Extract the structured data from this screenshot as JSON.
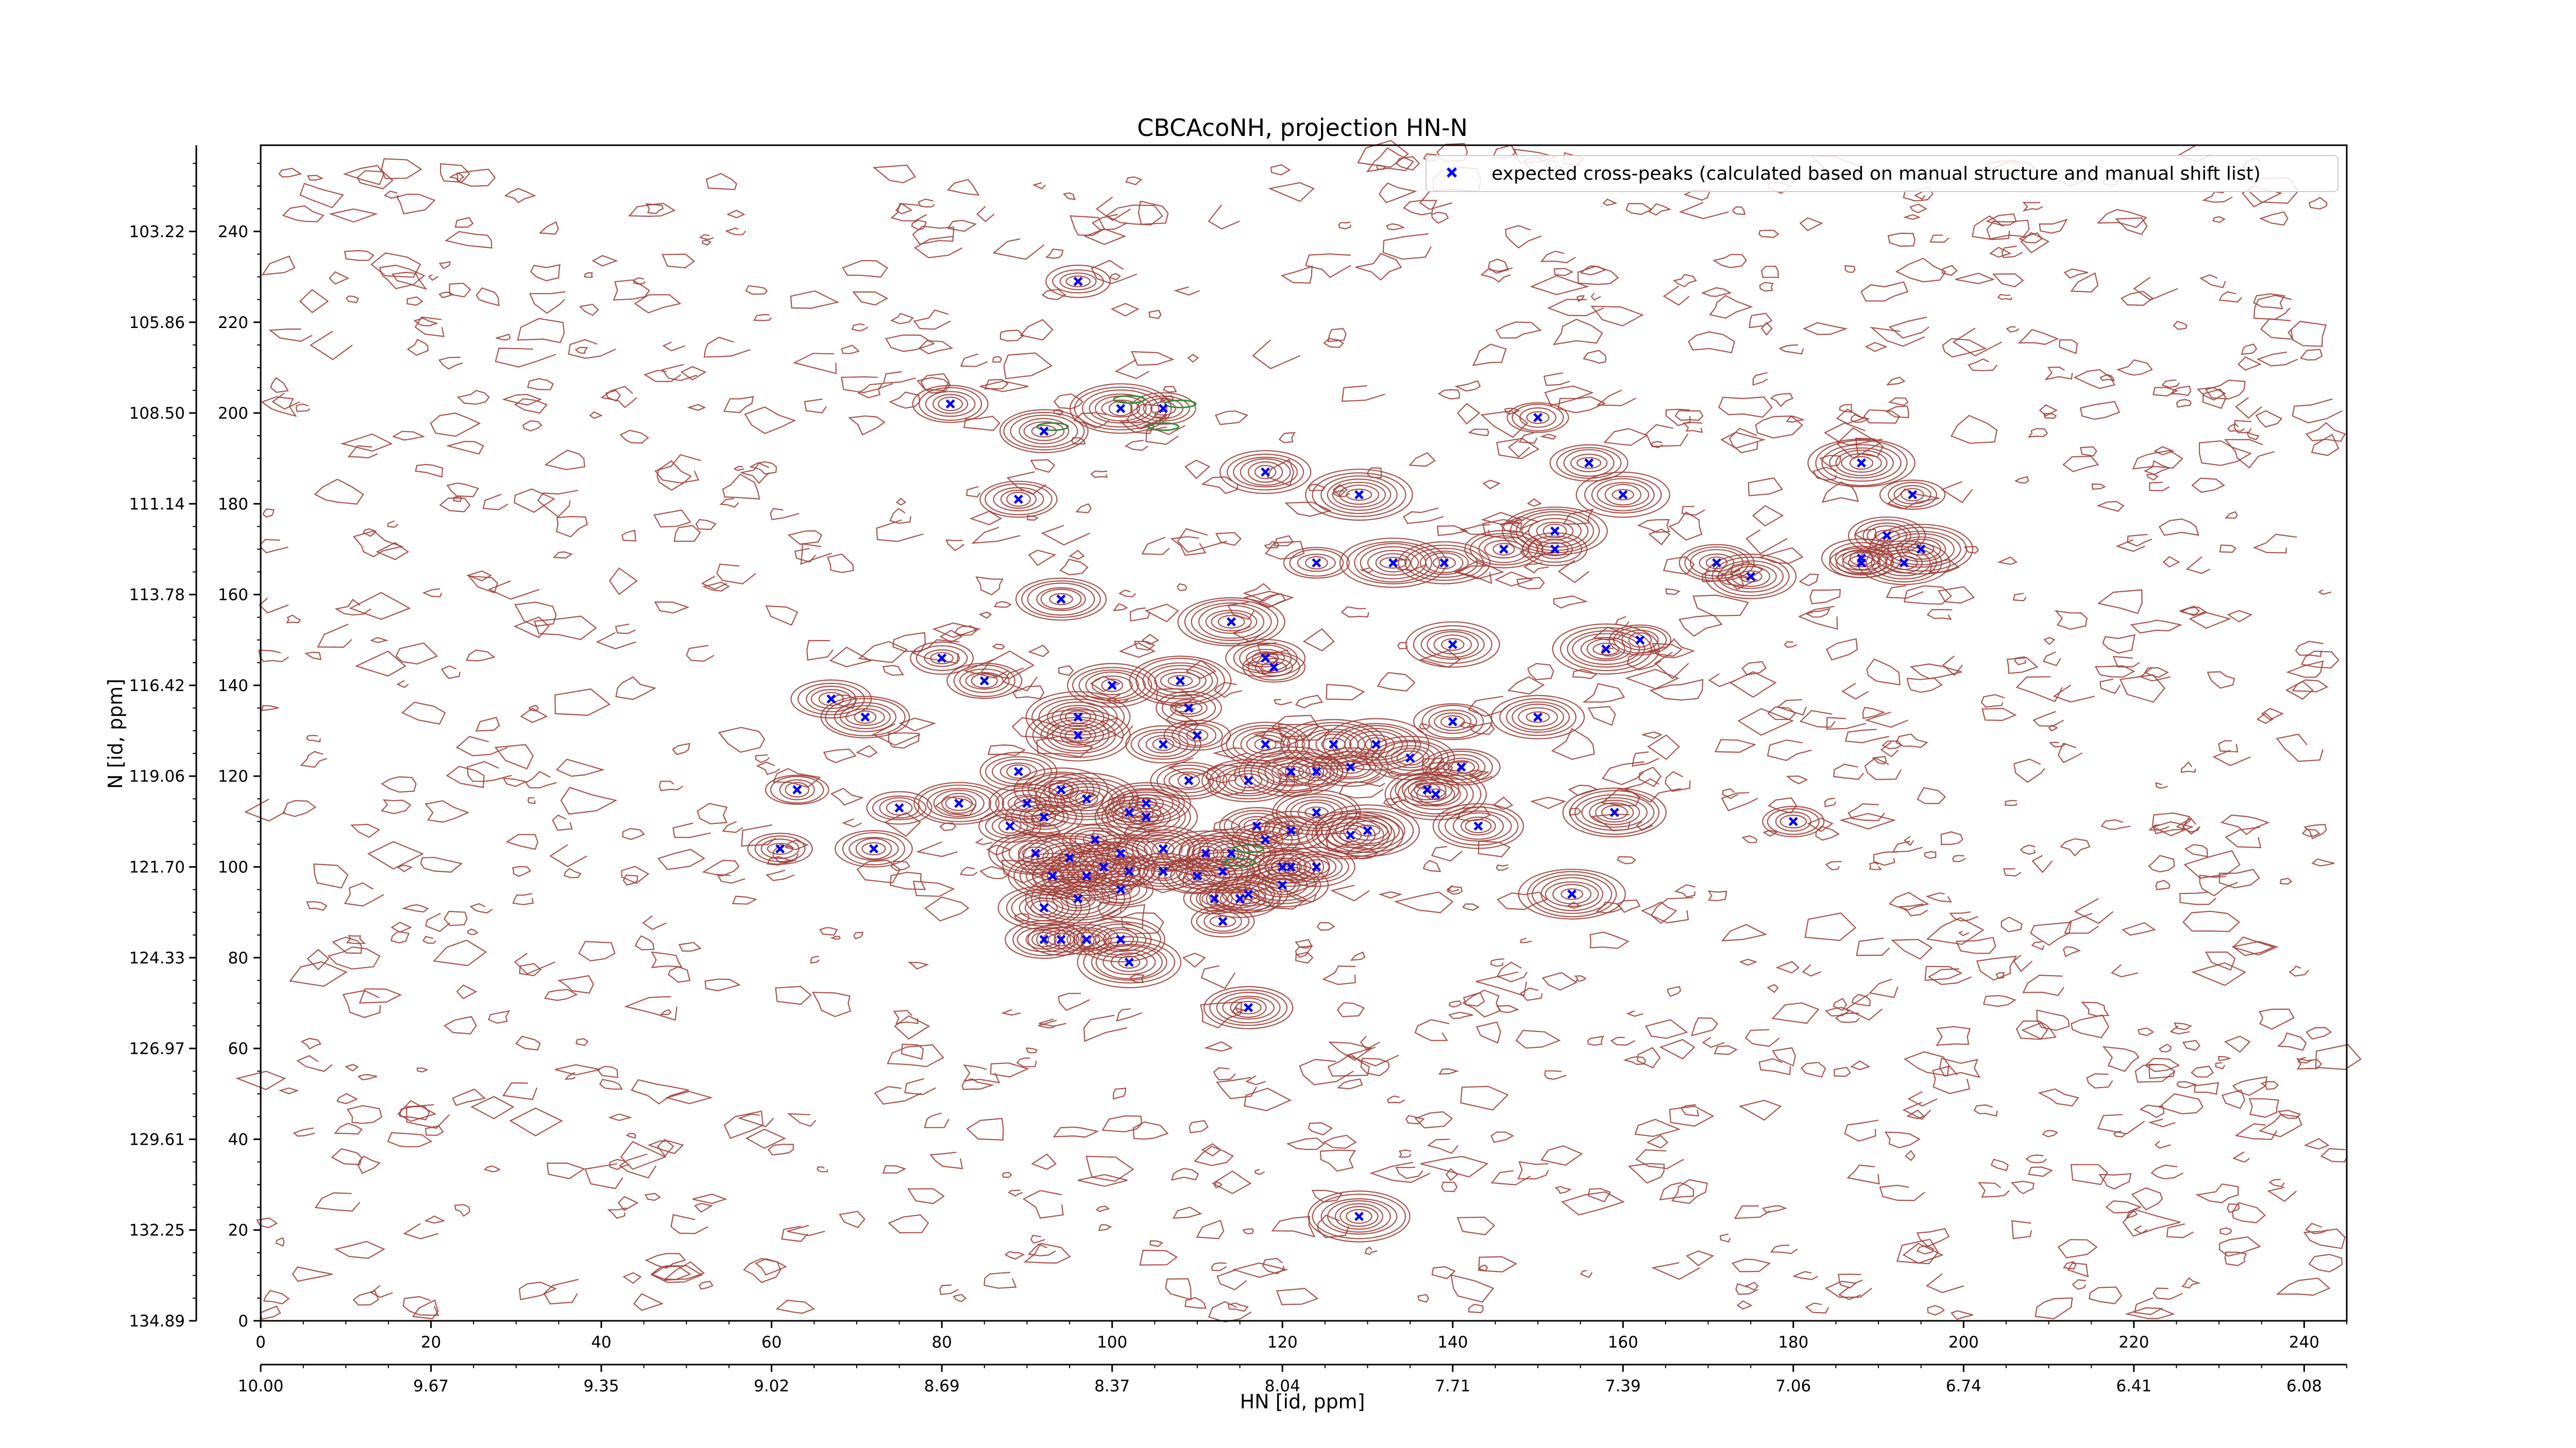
{
  "chart_data": {
    "type": "scatter",
    "title": "CBCAcoNH, projection HN-N",
    "xlabel": "HN [id, ppm]",
    "ylabel": "N [id, ppm]",
    "xlim": [
      0,
      245
    ],
    "ylim": [
      0,
      259
    ],
    "x_index_ticks": [
      "0",
      "20",
      "40",
      "60",
      "80",
      "100",
      "120",
      "140",
      "160",
      "180",
      "200",
      "220",
      "240"
    ],
    "x_ppm_ticks": [
      "10.00",
      "9.67",
      "9.35",
      "9.02",
      "8.69",
      "8.37",
      "8.04",
      "7.71",
      "7.39",
      "7.06",
      "6.74",
      "6.41",
      "6.08"
    ],
    "y_index_ticks": [
      "0",
      "20",
      "40",
      "60",
      "80",
      "100",
      "120",
      "140",
      "160",
      "180",
      "200",
      "220",
      "240"
    ],
    "y_ppm_ticks": [
      "134.89",
      "132.25",
      "129.61",
      "126.97",
      "124.33",
      "121.70",
      "119.06",
      "116.42",
      "113.78",
      "111.14",
      "108.50",
      "105.86",
      "103.22"
    ],
    "legend": {
      "label": "expected cross-peaks (calculated based on manual structure and manual shift list)",
      "placement": "top-right"
    },
    "colors": {
      "contour": "#a0403a",
      "negative_contour": "#2e8b3a",
      "peak_marker": "#0000ff"
    },
    "series": [
      {
        "name": "expected cross-peaks (calculated based on manual structure and manual shift list)",
        "points": [
          [
            96,
            229
          ],
          [
            81,
            202
          ],
          [
            92,
            196
          ],
          [
            101,
            201
          ],
          [
            106,
            201
          ],
          [
            89,
            181
          ],
          [
            118,
            187
          ],
          [
            129,
            182
          ],
          [
            150,
            199
          ],
          [
            156,
            189
          ],
          [
            160,
            182
          ],
          [
            152,
            174
          ],
          [
            152,
            170
          ],
          [
            146,
            170
          ],
          [
            139,
            167
          ],
          [
            133,
            167
          ],
          [
            124,
            167
          ],
          [
            171,
            167
          ],
          [
            175,
            164
          ],
          [
            188,
            189
          ],
          [
            194,
            182
          ],
          [
            191,
            173
          ],
          [
            193,
            167
          ],
          [
            195,
            170
          ],
          [
            188,
            167
          ],
          [
            188,
            168
          ],
          [
            94,
            159
          ],
          [
            114,
            154
          ],
          [
            80,
            146
          ],
          [
            85,
            141
          ],
          [
            100,
            140
          ],
          [
            108,
            141
          ],
          [
            119,
            144
          ],
          [
            118,
            146
          ],
          [
            140,
            149
          ],
          [
            158,
            148
          ],
          [
            162,
            150
          ],
          [
            67,
            137
          ],
          [
            71,
            133
          ],
          [
            96,
            133
          ],
          [
            109,
            135
          ],
          [
            140,
            132
          ],
          [
            150,
            133
          ],
          [
            96,
            129
          ],
          [
            110,
            129
          ],
          [
            106,
            127
          ],
          [
            118,
            127
          ],
          [
            131,
            127
          ],
          [
            63,
            117
          ],
          [
            89,
            121
          ],
          [
            82,
            114
          ],
          [
            126,
            127
          ],
          [
            75,
            113
          ],
          [
            90,
            114
          ],
          [
            94,
            117
          ],
          [
            97,
            115
          ],
          [
            88,
            109
          ],
          [
            92,
            111
          ],
          [
            91,
            103
          ],
          [
            95,
            102
          ],
          [
            98,
            106
          ],
          [
            101,
            103
          ],
          [
            104,
            114
          ],
          [
            104,
            111
          ],
          [
            102,
            112
          ],
          [
            109,
            119
          ],
          [
            116,
            119
          ],
          [
            121,
            121
          ],
          [
            124,
            121
          ],
          [
            128,
            122
          ],
          [
            135,
            124
          ],
          [
            138,
            116
          ],
          [
            137,
            117
          ],
          [
            141,
            122
          ],
          [
            143,
            109
          ],
          [
            159,
            112
          ],
          [
            180,
            110
          ],
          [
            117,
            109
          ],
          [
            111,
            103
          ],
          [
            114,
            103
          ],
          [
            118,
            106
          ],
          [
            121,
            108
          ],
          [
            124,
            112
          ],
          [
            128,
            107
          ],
          [
            120,
            100
          ],
          [
            124,
            100
          ],
          [
            120,
            96
          ],
          [
            130,
            108
          ],
          [
            61,
            104
          ],
          [
            72,
            104
          ],
          [
            93,
            98
          ],
          [
            99,
            100
          ],
          [
            102,
            99
          ],
          [
            106,
            99
          ],
          [
            113,
            99
          ],
          [
            97,
            98
          ],
          [
            101,
            95
          ],
          [
            110,
            98
          ],
          [
            92,
            91
          ],
          [
            96,
            93
          ],
          [
            112,
            93
          ],
          [
            116,
            94
          ],
          [
            106,
            104
          ],
          [
            154,
            94
          ],
          [
            94,
            84
          ],
          [
            92,
            84
          ],
          [
            101,
            84
          ],
          [
            102,
            79
          ],
          [
            113,
            88
          ],
          [
            115,
            93
          ],
          [
            116,
            69
          ],
          [
            129,
            23
          ],
          [
            97,
            84
          ],
          [
            121,
            100
          ]
        ]
      }
    ]
  }
}
